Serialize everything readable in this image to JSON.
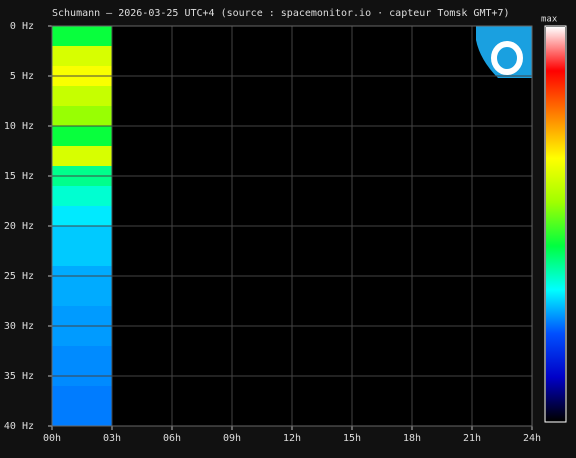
{
  "chart_data": {
    "type": "spectrogram",
    "title": "Schumann — 2026-03-25 UTC+4  (source : spacemonitor.io · capteur Tomsk GMT+7)",
    "x": [
      0,
      3
    ],
    "categories": [
      "0-2",
      "2-4",
      "4-6",
      "6-8",
      "8-10",
      "10-12",
      "12-14",
      "14-16",
      "16-18",
      "18-20",
      "20-22",
      "22-24",
      "24-26",
      "26-28",
      "28-30",
      "30-32",
      "32-34",
      "34-36",
      "36-38",
      "38-40"
    ],
    "bands": [
      0,
      2,
      4,
      6,
      8,
      10,
      12,
      14,
      16,
      18,
      20,
      22,
      24,
      26,
      28,
      30,
      32,
      34,
      36,
      38,
      40
    ],
    "values": [
      0.45,
      0.62,
      0.66,
      0.6,
      0.55,
      0.45,
      0.62,
      0.4,
      0.36,
      0.32,
      0.3,
      0.3,
      0.28,
      0.28,
      0.27,
      0.27,
      0.26,
      0.26,
      0.25,
      0.25
    ],
    "clim": [
      0,
      1
    ],
    "colorbar_label": "max",
    "colormap": [
      "#000000",
      "#0000c8",
      "#0050ff",
      "#00ffff",
      "#00ff40",
      "#a0ff00",
      "#ffff00",
      "#ff8000",
      "#ff0000",
      "#ffffff"
    ],
    "xlim": [
      0,
      24
    ],
    "xticks": [
      {
        "value": 0,
        "label": "00h"
      },
      {
        "value": 3,
        "label": "03h"
      },
      {
        "value": 6,
        "label": "06h"
      },
      {
        "value": 9,
        "label": "09h"
      },
      {
        "value": 12,
        "label": "12h"
      },
      {
        "value": 15,
        "label": "15h"
      },
      {
        "value": 18,
        "label": "18h"
      },
      {
        "value": 21,
        "label": "21h"
      },
      {
        "value": 24,
        "label": "24h"
      }
    ],
    "ylim": [
      0,
      40
    ],
    "yticks": [
      {
        "value": 0,
        "label": "0 Hz"
      },
      {
        "value": 5,
        "label": "5 Hz"
      },
      {
        "value": 10,
        "label": "10 Hz"
      },
      {
        "value": 15,
        "label": "15 Hz"
      },
      {
        "value": 20,
        "label": "20 Hz"
      },
      {
        "value": 25,
        "label": "25 Hz"
      },
      {
        "value": 30,
        "label": "30 Hz"
      },
      {
        "value": 35,
        "label": "35 Hz"
      },
      {
        "value": 40,
        "label": "40 Hz"
      }
    ],
    "grid": true
  }
}
